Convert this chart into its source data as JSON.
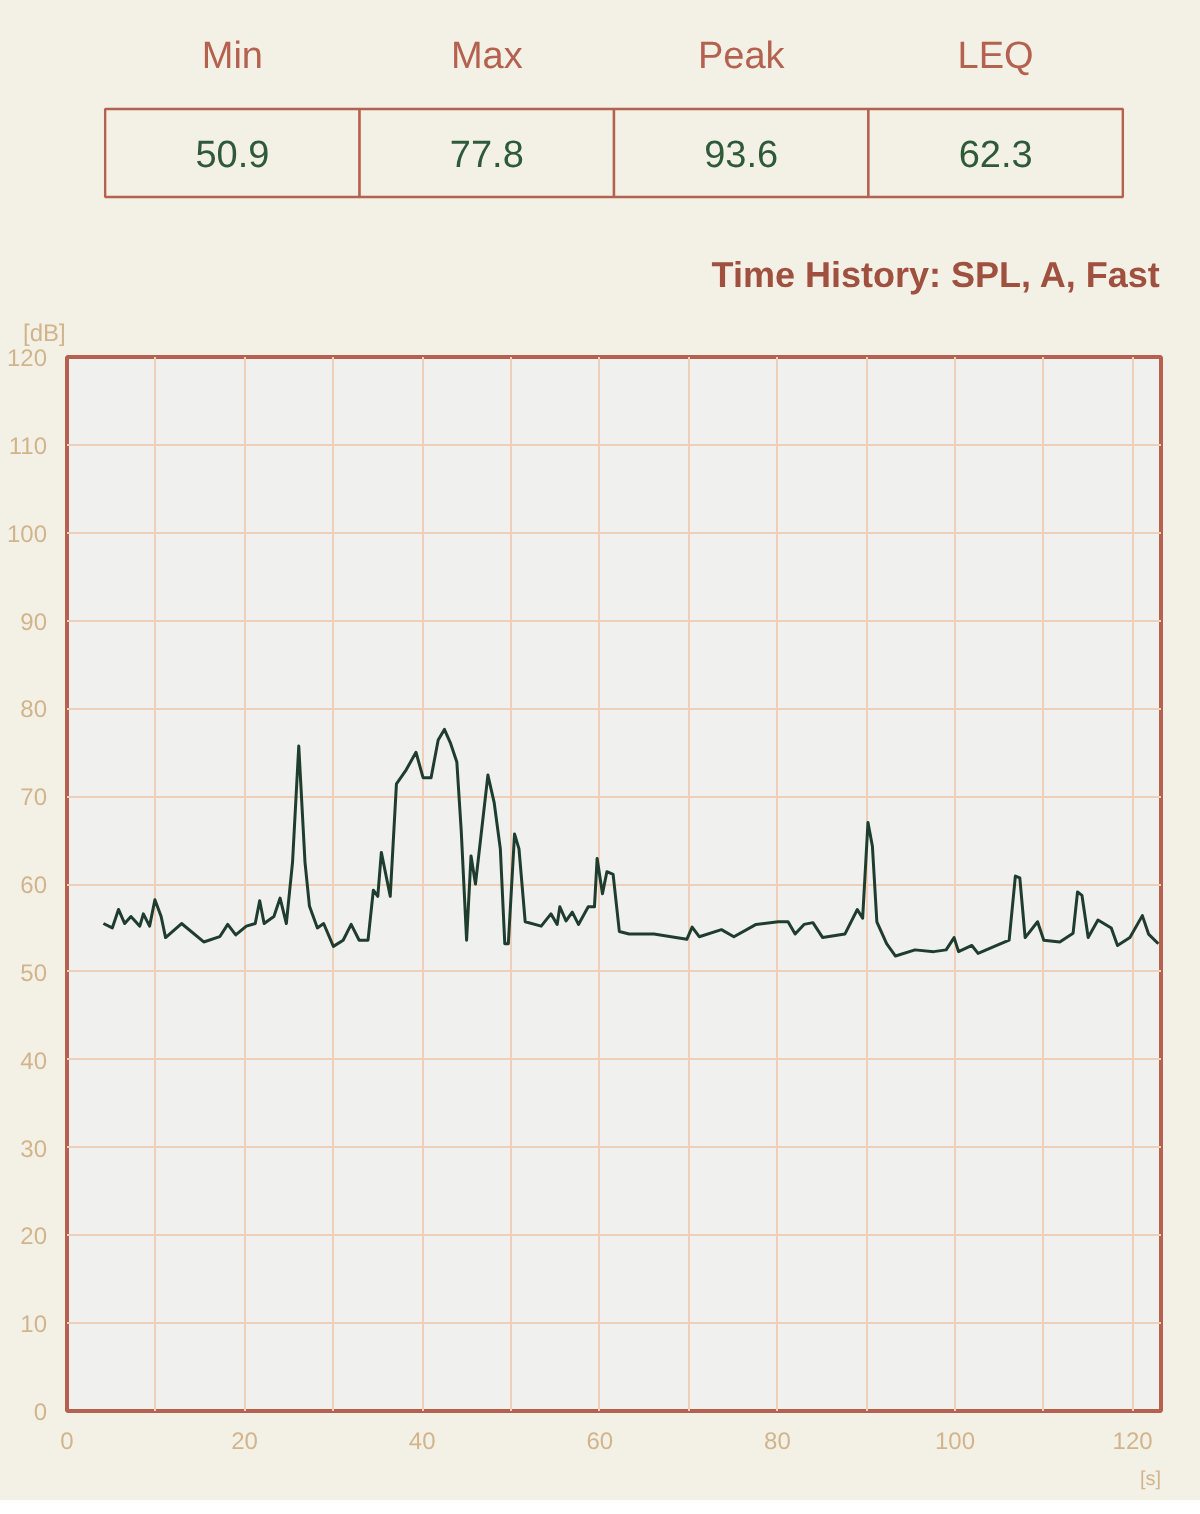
{
  "chart_data": [
    {
      "type": "other",
      "categories": [
        "Min",
        "Max",
        "Peak",
        "LEQ"
      ],
      "values": [
        50.9,
        77.8,
        93.6,
        62.3
      ],
      "data_labels": true
    },
    {
      "type": "line",
      "title": "Time History: SPL, A, Fast",
      "ylabel": "[dB]",
      "xlabel": "[s]",
      "xlim": [
        0,
        123.2
      ],
      "ylim": [
        0,
        120
      ],
      "xticks": [
        0,
        20,
        40,
        60,
        80,
        100,
        120
      ],
      "yticks": [
        0,
        10,
        20,
        30,
        40,
        50,
        60,
        70,
        80,
        90,
        100,
        110,
        120
      ],
      "grid": true,
      "series": [
        {
          "color": "#1f3d2e",
          "x": [
            4.1,
            5.1,
            5.8,
            6.5,
            7.2,
            8.2,
            8.6,
            9.3,
            9.9,
            10.6,
            11.1,
            12.9,
            15.4,
            17.2,
            18.1,
            19,
            20.2,
            21.2,
            21.7,
            22.2,
            23.3,
            24,
            24.7,
            25.4,
            26.1,
            26.8,
            27.3,
            28.2,
            28.9,
            30,
            31.1,
            32,
            32.9,
            33.9,
            34.5,
            35,
            35.4,
            36.4,
            37.1,
            38.2,
            39.3,
            40.1,
            41,
            41.8,
            42.5,
            43.2,
            43.9,
            44.4,
            45,
            45.5,
            46,
            47.4,
            48.1,
            48.8,
            49.3,
            49.7,
            50.4,
            50.9,
            51.6,
            53.4,
            54.5,
            55.2,
            55.5,
            56.2,
            56.9,
            57.6,
            58.7,
            59.4,
            59.7,
            60.3,
            60.8,
            61.5,
            62.2,
            63.3,
            66.1,
            69.8,
            70.4,
            71.2,
            73.7,
            75.1,
            77.6,
            80.1,
            81.2,
            82,
            83,
            84,
            85.1,
            87.6,
            89,
            89.6,
            90.2,
            90.7,
            91.2,
            92.3,
            93.3,
            95.5,
            97.6,
            99,
            99.9,
            100.4,
            101.9,
            102.6,
            104.7,
            106.1,
            106.8,
            107.3,
            107.9,
            109.3,
            110,
            111.8,
            113.3,
            113.8,
            114.3,
            115,
            116.1,
            117.6,
            118.3,
            119.7,
            121.1,
            121.8,
            122.9
          ],
          "values": [
            55.5,
            55,
            57.1,
            55.5,
            56.3,
            55.2,
            56.6,
            55.2,
            58.2,
            56.3,
            53.9,
            55.5,
            53.4,
            54,
            55.4,
            54.2,
            55.2,
            55.5,
            58.1,
            55.5,
            56.3,
            58.4,
            55.5,
            62.5,
            75.7,
            62.5,
            57.5,
            55,
            55.5,
            52.9,
            53.6,
            55.4,
            53.6,
            53.6,
            59.3,
            58.6,
            63.6,
            58.6,
            71.4,
            73,
            75,
            72.1,
            72.1,
            76.4,
            77.6,
            76,
            73.9,
            66,
            53.6,
            63.2,
            60,
            72.4,
            69.3,
            64,
            53.2,
            53.2,
            65.7,
            64,
            55.7,
            55.2,
            56.6,
            55.4,
            57.4,
            55.8,
            56.8,
            55.4,
            57.4,
            57.4,
            62.9,
            58.9,
            61.4,
            61.1,
            54.6,
            54.3,
            54.3,
            53.7,
            55.1,
            54,
            54.8,
            54,
            55.4,
            55.7,
            55.7,
            54.3,
            55.4,
            55.6,
            53.9,
            54.3,
            57.1,
            56.1,
            67,
            64.3,
            55.7,
            53.2,
            51.8,
            52.5,
            52.3,
            52.5,
            53.9,
            52.3,
            53,
            52.1,
            53,
            53.6,
            60.9,
            60.7,
            53.9,
            55.7,
            53.6,
            53.4,
            54.4,
            59.1,
            58.7,
            53.9,
            55.9,
            55,
            53,
            53.9,
            56.4,
            54.3,
            53.2
          ]
        }
      ]
    }
  ]
}
